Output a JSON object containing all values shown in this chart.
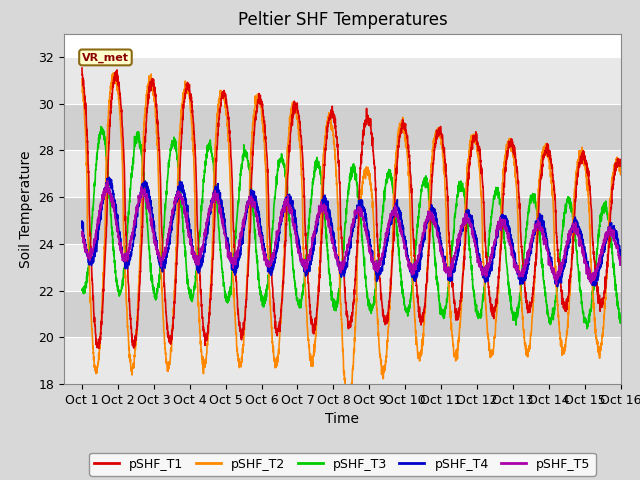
{
  "title": "Peltier SHF Temperatures",
  "xlabel": "Time",
  "ylabel": "Soil Temperature",
  "ylim": [
    18,
    33
  ],
  "yticks": [
    18,
    20,
    22,
    24,
    26,
    28,
    30,
    32
  ],
  "xlim": [
    0.5,
    16.0
  ],
  "xtick_labels": [
    "Oct 1",
    "Oct 2",
    "Oct 3",
    "Oct 4",
    "Oct 5",
    "Oct 6",
    "Oct 7",
    "Oct 8",
    "Oct 9",
    "Oct 10",
    "Oct 11",
    "Oct 12",
    "Oct 13",
    "Oct 14",
    "Oct 15",
    "Oct 16"
  ],
  "xtick_positions": [
    1,
    2,
    3,
    4,
    5,
    6,
    7,
    8,
    9,
    10,
    11,
    12,
    13,
    14,
    15,
    16
  ],
  "colors": {
    "T1": "#dd0000",
    "T2": "#ff8800",
    "T3": "#00cc00",
    "T4": "#0000cc",
    "T5": "#aa00aa"
  },
  "annotation_text": "VR_met",
  "bg_color": "#d8d8d8",
  "plot_bg_light": "#e8e8e8",
  "plot_bg_dark": "#d0d0d0",
  "title_fontsize": 12,
  "label_fontsize": 10,
  "tick_fontsize": 9,
  "lw": 1.2
}
